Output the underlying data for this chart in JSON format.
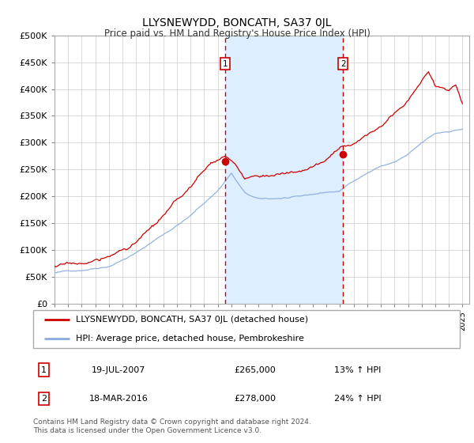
{
  "title": "LLYSNEWYDD, BONCATH, SA37 0JL",
  "subtitle": "Price paid vs. HM Land Registry's House Price Index (HPI)",
  "legend_house": "LLYSNEWYDD, BONCATH, SA37 0JL (detached house)",
  "legend_hpi": "HPI: Average price, detached house, Pembrokeshire",
  "note1_date": "19-JUL-2007",
  "note1_price": "£265,000",
  "note1_hpi": "13% ↑ HPI",
  "note2_date": "18-MAR-2016",
  "note2_price": "£278,000",
  "note2_hpi": "24% ↑ HPI",
  "copyright": "Contains HM Land Registry data © Crown copyright and database right 2024.\nThis data is licensed under the Open Government Licence v3.0.",
  "ylim": [
    0,
    500000
  ],
  "yticks": [
    0,
    50000,
    100000,
    150000,
    200000,
    250000,
    300000,
    350000,
    400000,
    450000,
    500000
  ],
  "sale1_year": 2007.54,
  "sale1_price": 265000,
  "sale2_year": 2016.21,
  "sale2_price": 278000,
  "house_color": "#cc0000",
  "hpi_color": "#88aadd",
  "shade_color": "#ddeeff",
  "vline_color": "#cc0000",
  "grid_color": "#cccccc",
  "bg_color": "#ffffff",
  "hpi_keypoints_x": [
    1995,
    1997,
    1999,
    2001,
    2003,
    2005,
    2007,
    2008,
    2009,
    2010,
    2011,
    2012,
    2013,
    2015,
    2016,
    2017,
    2018,
    2019,
    2020,
    2021,
    2022,
    2023,
    2024,
    2025
  ],
  "hpi_keypoints_y": [
    57000,
    63000,
    73000,
    98000,
    133000,
    168000,
    215000,
    248000,
    210000,
    198000,
    198000,
    200000,
    200000,
    208000,
    210000,
    230000,
    245000,
    258000,
    265000,
    278000,
    298000,
    315000,
    320000,
    325000
  ],
  "house_keypoints_x": [
    1995,
    1997,
    1999,
    2001,
    2003,
    2005,
    2006.5,
    2007.54,
    2008.2,
    2009,
    2010,
    2011,
    2012,
    2013,
    2014,
    2015,
    2016.21,
    2017,
    2018,
    2019,
    2020,
    2021,
    2022,
    2022.5,
    2023,
    2024,
    2024.5,
    2025
  ],
  "house_keypoints_y": [
    70000,
    73000,
    84000,
    112000,
    155000,
    205000,
    250000,
    265000,
    248000,
    218000,
    225000,
    228000,
    230000,
    232000,
    240000,
    252000,
    278000,
    285000,
    300000,
    325000,
    355000,
    375000,
    415000,
    430000,
    405000,
    395000,
    410000,
    375000
  ]
}
